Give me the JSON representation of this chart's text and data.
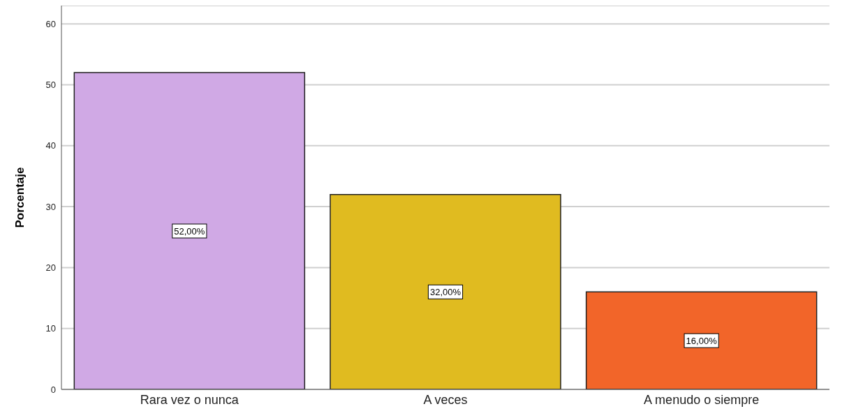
{
  "chart_data": {
    "type": "bar",
    "ylabel": "Porcentaje",
    "categories": [
      "Rara vez o nunca",
      "A veces",
      "A menudo o siempre"
    ],
    "values": [
      52,
      32,
      16
    ],
    "colors": [
      "#d0a9e5",
      "#e0bb20",
      "#f26529"
    ],
    "value_labels": [
      "52,00%",
      "32,00%",
      "16,00%"
    ],
    "ylim": [
      0,
      63
    ],
    "yticks": [
      0,
      10,
      20,
      30,
      40,
      50,
      60
    ],
    "grid": "y"
  }
}
